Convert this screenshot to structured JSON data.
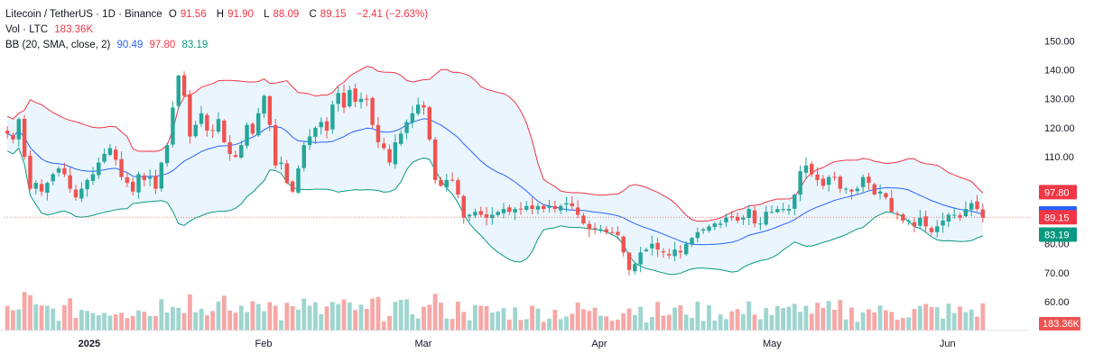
{
  "header": {
    "symbol": "Litecoin / TetherUS · 1D · Binance",
    "o_label": "O",
    "o_val": "91.56",
    "h_label": "H",
    "h_val": "91.90",
    "l_label": "L",
    "l_val": "88.09",
    "c_label": "C",
    "c_val": "89.15",
    "change": "−2.41 (−2.63%)",
    "vol_label": "Vol · LTC",
    "vol_val": "183.36K",
    "bb_label": "BB (20, SMA, close, 2)",
    "bb_mid": "90.49",
    "bb_upper": "97.80",
    "bb_lower": "83.19"
  },
  "colors": {
    "up": "#26a69a",
    "down": "#ef5350",
    "bb_upper": "#f23645",
    "bb_mid": "#2962ff",
    "bb_lower": "#089981",
    "bb_fill": "#e3f2fd",
    "vol_up": "#9fd5cf",
    "vol_down": "#f5a8a6"
  },
  "chart_data": {
    "type": "candlestick",
    "y_axis_ticks": [
      "150.00",
      "140.00",
      "130.00",
      "120.00",
      "110.00",
      "80.00",
      "70.00",
      "60.00"
    ],
    "ylim": [
      56,
      156
    ],
    "x_axis_labels": [
      {
        "label": "2025",
        "index": 14
      },
      {
        "label": "Feb",
        "index": 45
      },
      {
        "label": "Mar",
        "index": 73
      },
      {
        "label": "Apr",
        "index": 104
      },
      {
        "label": "May",
        "index": 134
      },
      {
        "label": "Jun",
        "index": 165
      }
    ],
    "price_badges": [
      {
        "label": "97.80",
        "value": 97.8,
        "color": "#f23645"
      },
      {
        "label": "90.49",
        "value": 90.49,
        "color": "#2962ff"
      },
      {
        "label": "89.15",
        "value": 89.15,
        "color": "#f23645"
      },
      {
        "label": "83.19",
        "value": 83.19,
        "color": "#089981"
      }
    ],
    "volume_badge": "183.36K",
    "last_close": 89.15,
    "closes": [
      118,
      116,
      123,
      110,
      99,
      101,
      98,
      101,
      104,
      106,
      104,
      99,
      96,
      99,
      102,
      104,
      108,
      111,
      113,
      109,
      103,
      101,
      98,
      104,
      102,
      103,
      99,
      108,
      114,
      127,
      138,
      131,
      117,
      121,
      125,
      119,
      119,
      123,
      115,
      111,
      110,
      114,
      121,
      118,
      125,
      131,
      121,
      107,
      108,
      101,
      98,
      106,
      114,
      117,
      120,
      122,
      119,
      128,
      132,
      127,
      133,
      129,
      130,
      130,
      121,
      115,
      113,
      108,
      115,
      118,
      122,
      125,
      128,
      127,
      116,
      102,
      100,
      102,
      102,
      97,
      89,
      90,
      91,
      90,
      89,
      90,
      91,
      92,
      91,
      92,
      92,
      93,
      92,
      93,
      92,
      93,
      92,
      93,
      94,
      93,
      90,
      87,
      85,
      85,
      85,
      84,
      84,
      83,
      77,
      71,
      73,
      77,
      78,
      80,
      78,
      77,
      76,
      78,
      77,
      80,
      82,
      84,
      85,
      86,
      87,
      87,
      89,
      89,
      88,
      89,
      92,
      87,
      87,
      91,
      91,
      92,
      92,
      92,
      97,
      105,
      107,
      104,
      102,
      100,
      103,
      103,
      99,
      99,
      98,
      99,
      103,
      101,
      97,
      98,
      96,
      91,
      90,
      88,
      88,
      86,
      89,
      86,
      84,
      86,
      88,
      90,
      90,
      89,
      92,
      94,
      92,
      89
    ]
  }
}
